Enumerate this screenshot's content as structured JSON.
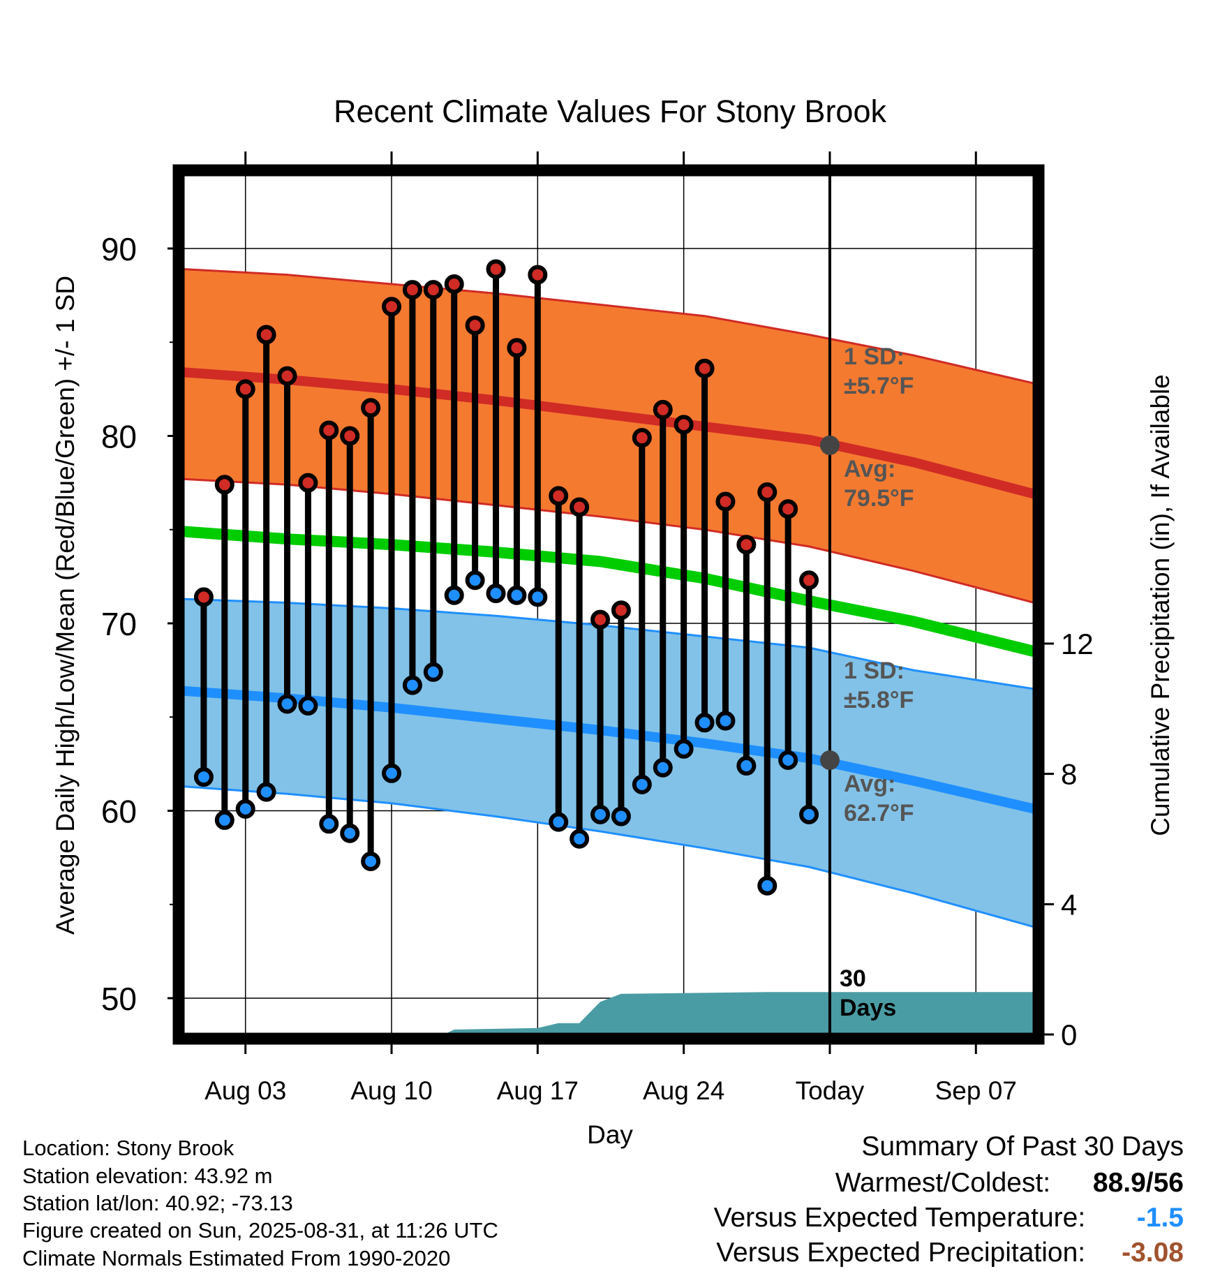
{
  "chart_data": {
    "type": "line",
    "title": "Recent Climate Values For Stony Brook",
    "xlabel": "Day",
    "ylabel": "Average Daily High/Low/Mean (Red/Blue/Green) +/- 1 SD",
    "y2label": "Cumulative Precipitation (in), If Available",
    "ylim": [
      48.3,
      94.4
    ],
    "y2lim": [
      0,
      26.4
    ],
    "yticks": [
      50,
      60,
      70,
      80,
      90
    ],
    "y2ticks": [
      0,
      4,
      8,
      12
    ],
    "xticks": [
      {
        "x": 3,
        "label": "Aug 03"
      },
      {
        "x": 10,
        "label": "Aug 10"
      },
      {
        "x": 17,
        "label": "Aug 17"
      },
      {
        "x": 24,
        "label": "Aug 24"
      },
      {
        "x": 31,
        "label": "Today"
      },
      {
        "x": 38,
        "label": "Sep 07"
      }
    ],
    "xlim": [
      0,
      40.8
    ],
    "grid": true,
    "today_x": 31,
    "window_label": "30 Days",
    "days": [
      1,
      2,
      3,
      4,
      5,
      6,
      7,
      8,
      9,
      10,
      11,
      12,
      13,
      14,
      15,
      16,
      17,
      18,
      19,
      20,
      21,
      22,
      23,
      24,
      25,
      26,
      27,
      28,
      29,
      30
    ],
    "highs": [
      71.4,
      77.4,
      82.5,
      85.4,
      83.2,
      77.5,
      80.3,
      80.0,
      81.5,
      86.9,
      87.8,
      87.8,
      88.1,
      85.9,
      88.9,
      84.7,
      88.6,
      76.8,
      76.2,
      70.2,
      70.7,
      79.9,
      81.4,
      80.6,
      83.6,
      76.5,
      74.2,
      77.0,
      76.1,
      72.3
    ],
    "lows": [
      61.8,
      59.5,
      60.1,
      61.0,
      65.7,
      65.6,
      59.3,
      58.8,
      57.3,
      62.0,
      66.7,
      67.4,
      71.5,
      72.3,
      71.6,
      71.5,
      71.4,
      59.4,
      58.5,
      59.8,
      59.7,
      61.4,
      62.3,
      63.3,
      64.7,
      64.8,
      62.4,
      56.0,
      62.7,
      59.8
    ],
    "normals": {
      "x": [
        0,
        5,
        10,
        15,
        20,
        25,
        30,
        35,
        40.8
      ],
      "high_avg": [
        83.4,
        83.0,
        82.5,
        81.9,
        81.2,
        80.5,
        79.8,
        78.6,
        76.9
      ],
      "high_upper": [
        88.9,
        88.6,
        88.1,
        87.6,
        87.0,
        86.4,
        85.4,
        84.3,
        82.8
      ],
      "high_lower": [
        77.7,
        77.4,
        76.9,
        76.3,
        75.7,
        75.0,
        74.1,
        72.8,
        71.1
      ],
      "mean": [
        74.9,
        74.5,
        74.2,
        73.8,
        73.3,
        72.4,
        71.2,
        70.1,
        68.5
      ],
      "low_avg": [
        66.4,
        66.0,
        65.5,
        64.9,
        64.3,
        63.6,
        62.8,
        61.6,
        60.1
      ],
      "low_upper": [
        71.3,
        71.1,
        70.8,
        70.4,
        69.9,
        69.3,
        68.7,
        67.5,
        66.5
      ],
      "low_lower": [
        61.3,
        60.9,
        60.4,
        59.7,
        58.9,
        58.0,
        57.0,
        55.6,
        53.8
      ]
    },
    "today_high_avg": 79.5,
    "today_low_avg": 62.7,
    "precip": {
      "x": [
        0,
        12.5,
        13.0,
        17.0,
        18.0,
        19.0,
        20.0,
        21.0,
        28.0,
        40.8
      ],
      "cum": [
        0,
        0,
        0.15,
        0.2,
        0.35,
        0.35,
        1.0,
        1.25,
        1.3,
        1.3
      ]
    },
    "annotations": {
      "high_sd_label": "1 SD:",
      "high_sd_value": "±5.7°F",
      "high_avg_label": "Avg:",
      "high_avg_value": "79.5°F",
      "low_sd_label": "1 SD:",
      "low_sd_value": "±5.8°F",
      "low_avg_label": "Avg:",
      "low_avg_value": "62.7°F",
      "days_label_1": "30",
      "days_label_2": "Days"
    },
    "colors": {
      "high_band": "#f47a30",
      "high_line": "#d02b25",
      "mean_line": "#00cc00",
      "low_band": "#82c2e8",
      "low_line": "#1f8fff",
      "precip": "#4a9ca4",
      "high_dot": "#d02b25",
      "low_dot": "#1f8fff",
      "today_dot": "#444444"
    }
  },
  "info": {
    "location": "Location: Stony Brook",
    "elevation": "Station elevation: 43.92 m",
    "latlon": "Station lat/lon: 40.92; -73.13",
    "created": "Figure created on Sun, 2025-08-31, at 11:26 UTC",
    "normals": "Climate Normals Estimated From 1990-2020"
  },
  "summary": {
    "title": "Summary Of Past 30 Days",
    "warm_label": "Warmest/Coldest:",
    "warm_value": "88.9/56",
    "temp_label": "Versus Expected Temperature:",
    "temp_value": "-1.5",
    "temp_color": "#1f8fff",
    "precip_label": "Versus Expected Precipitation:",
    "precip_value": "-3.08",
    "precip_color": "#a0522d"
  }
}
